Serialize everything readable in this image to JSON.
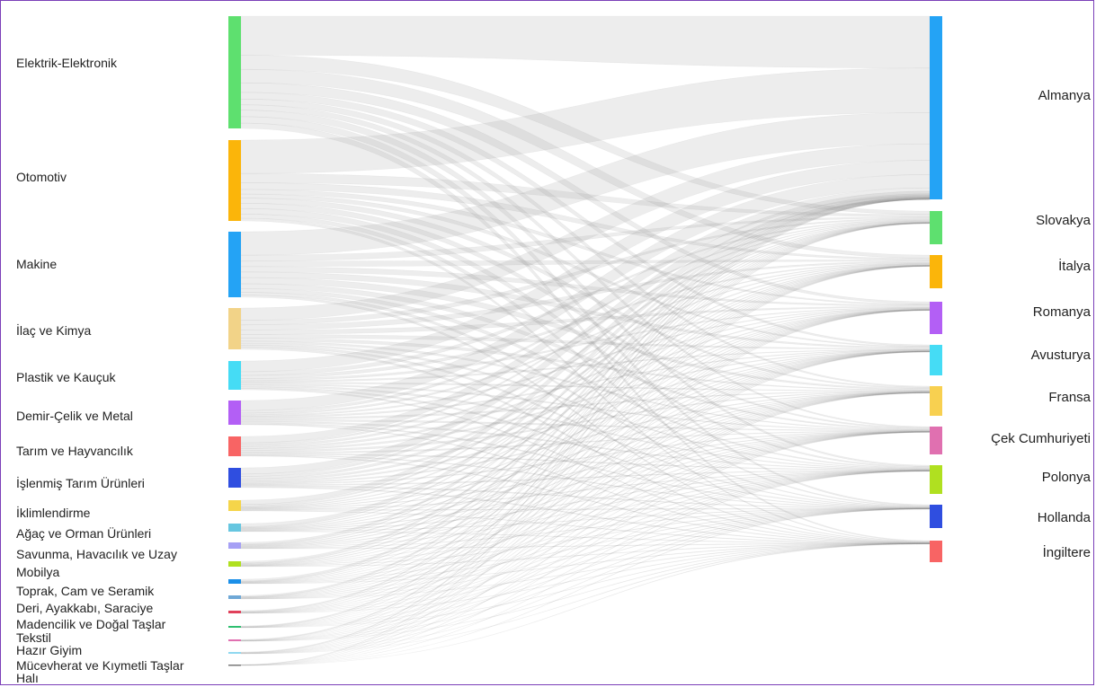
{
  "sources": [
    {
      "name": "Elektrik-Elektronik",
      "color": "#5ee06f"
    },
    {
      "name": "Otomotiv",
      "color": "#fbb50a"
    },
    {
      "name": "Makine",
      "color": "#24a3f5"
    },
    {
      "name": "İlaç ve Kimya",
      "color": "#f2d388"
    },
    {
      "name": "Plastik ve Kauçuk",
      "color": "#45dcf5"
    },
    {
      "name": "Demir-Çelik ve Metal",
      "color": "#b35ff5"
    },
    {
      "name": "Tarım ve Hayvancılık",
      "color": "#f86464"
    },
    {
      "name": "İşlenmiş Tarım Ürünleri",
      "color": "#2f4ee0"
    },
    {
      "name": "İklimlendirme",
      "color": "#f5d54a"
    },
    {
      "name": "Ağaç ve Orman Ürünleri",
      "color": "#66c6e0"
    },
    {
      "name": "Savunma, Havacılık ve Uzay",
      "color": "#a6a0f5"
    },
    {
      "name": "Mobilya",
      "color": "#b0e020"
    },
    {
      "name": "Toprak, Cam ve Seramik",
      "color": "#1b8fe8"
    },
    {
      "name": "Deri, Ayakkabı, Saraciye",
      "color": "#6fa8d6"
    },
    {
      "name": "Madencilik ve Doğal Taşlar",
      "color": "#e0405a"
    },
    {
      "name": "Tekstil",
      "color": "#2fbf70"
    },
    {
      "name": "Hazır Giyim",
      "color": "#e070b0"
    },
    {
      "name": "Mücevherat ve Kıymetli Taşlar",
      "color": "#8fd8f0"
    },
    {
      "name": "Halı",
      "color": "#7a7a7a"
    }
  ],
  "targets": [
    {
      "name": "Almanya",
      "color": "#24a3f5"
    },
    {
      "name": "Slovakya",
      "color": "#5ee06f"
    },
    {
      "name": "İtalya",
      "color": "#fbb50a"
    },
    {
      "name": "Romanya",
      "color": "#b35ff5"
    },
    {
      "name": "Avusturya",
      "color": "#45dcf5"
    },
    {
      "name": "Fransa",
      "color": "#f8d050"
    },
    {
      "name": "Çek Cumhuriyeti",
      "color": "#e070b0"
    },
    {
      "name": "Polonya",
      "color": "#b0e020"
    },
    {
      "name": "Hollanda",
      "color": "#2f4ee0"
    },
    {
      "name": "İngiltere",
      "color": "#f86464"
    }
  ]
}
